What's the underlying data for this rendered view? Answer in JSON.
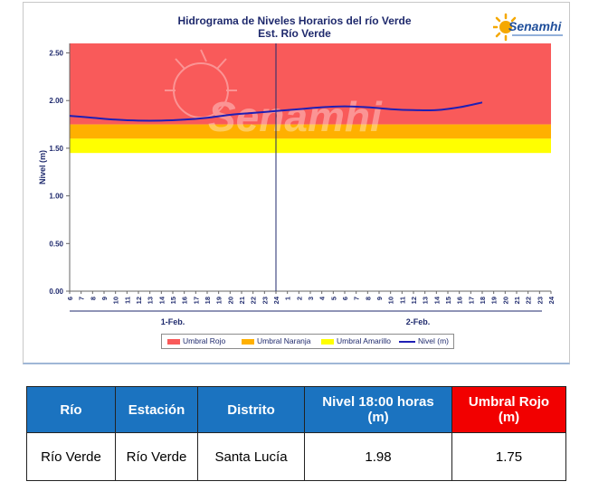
{
  "chart_data": {
    "type": "line",
    "title": "Hidrograma de Niveles Horarios del río Verde",
    "subtitle": "Est. Río Verde",
    "ylabel": "Nivel (m)",
    "ylim": [
      0,
      2.6
    ],
    "yticks": [
      "0.00",
      "0.50",
      "1.00",
      "1.50",
      "2.00",
      "2.50"
    ],
    "xticks": [
      "6",
      "7",
      "8",
      "9",
      "10",
      "11",
      "12",
      "13",
      "14",
      "15",
      "16",
      "17",
      "18",
      "19",
      "20",
      "21",
      "22",
      "23",
      "24",
      "1",
      "2",
      "3",
      "4",
      "5",
      "6",
      "7",
      "8",
      "9",
      "10",
      "11",
      "12",
      "13",
      "14",
      "15",
      "16",
      "17",
      "18",
      "19",
      "20",
      "21",
      "22",
      "23",
      "24"
    ],
    "day_labels": [
      "1-Feb.",
      "2-Feb."
    ],
    "thresholds": [
      {
        "name": "Umbral Rojo",
        "from": 1.75,
        "to": 2.6,
        "color": "#f95a5a"
      },
      {
        "name": "Umbral Naranja",
        "from": 1.6,
        "to": 1.75,
        "color": "#ffb000"
      },
      {
        "name": "Umbral Amarillo",
        "from": 1.45,
        "to": 1.6,
        "color": "#ffff00"
      }
    ],
    "series": [
      {
        "name": "Nivel (m)",
        "color": "#1f1fb4",
        "x": [
          0,
          2,
          4,
          6,
          8,
          10,
          12,
          14,
          16,
          18,
          20,
          22,
          24,
          26,
          28,
          30,
          32,
          34,
          36
        ],
        "values": [
          1.84,
          1.82,
          1.8,
          1.79,
          1.79,
          1.8,
          1.82,
          1.85,
          1.87,
          1.89,
          1.91,
          1.93,
          1.94,
          1.93,
          1.91,
          1.9,
          1.9,
          1.93,
          1.98
        ]
      }
    ],
    "grid": false,
    "legend_position": "bottom"
  },
  "watermark": "Senamhi",
  "logo": {
    "name": "Senamhi"
  },
  "table": {
    "headers": [
      "Río",
      "Estación",
      "Distrito",
      "Nivel  18:00 horas (m)",
      "Umbral Rojo (m)"
    ],
    "row": [
      "Río Verde",
      "Río Verde",
      "Santa Lucía",
      "1.98",
      "1.75"
    ]
  }
}
